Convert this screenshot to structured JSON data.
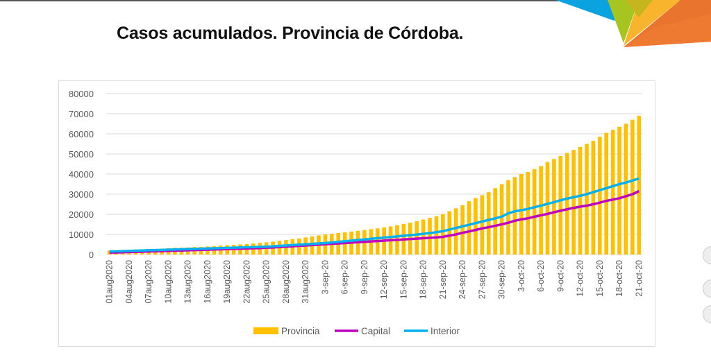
{
  "title": "Casos acumulados. Provincia de Córdoba.",
  "chart_data": {
    "type": "bar+line",
    "title": "Casos acumulados. Provincia de Córdoba.",
    "ylim": [
      0,
      80000
    ],
    "yticks": [
      0,
      10000,
      20000,
      30000,
      40000,
      50000,
      60000,
      70000,
      80000
    ],
    "grid": true,
    "legend_position": "bottom",
    "xtick_every": 3,
    "xtick_labels": [
      "01aug2020",
      "04aug2020",
      "07aug2020",
      "10aug2020",
      "13aug2020",
      "16aug2020",
      "19aug2020",
      "22aug2020",
      "25aug2020",
      "28aug2020",
      "31aug2020",
      "3-sep-20",
      "6-sep-20",
      "9-sep-20",
      "12-sep-20",
      "15-sep-20",
      "18-sep-20",
      "21-sep-20",
      "24-sep-20",
      "27-sep-20",
      "30-sep-20",
      "3-oct-20",
      "6-oct-20",
      "9-oct-20",
      "12-oct-20",
      "15-oct-20",
      "18-oct-20",
      "21-oct-20"
    ],
    "series": [
      {
        "name": "Provincia",
        "kind": "bar",
        "color": "#FFC000",
        "values": [
          2000,
          2100,
          2300,
          2400,
          2500,
          2600,
          2700,
          2800,
          2900,
          3100,
          3300,
          3400,
          3500,
          3700,
          3800,
          4000,
          4200,
          4400,
          4600,
          4800,
          5000,
          5200,
          5500,
          5800,
          6100,
          6400,
          6800,
          7200,
          7600,
          8000,
          8500,
          9000,
          9500,
          10000,
          10300,
          10700,
          11000,
          11400,
          11800,
          12200,
          12600,
          13000,
          13500,
          14000,
          14600,
          15200,
          15800,
          16600,
          17400,
          18200,
          19000,
          20000,
          21500,
          23000,
          24500,
          26500,
          28000,
          29500,
          31000,
          33000,
          35000,
          37000,
          38500,
          40000,
          41000,
          42500,
          44000,
          46000,
          47500,
          49000,
          50500,
          52000,
          53500,
          55000,
          56500,
          58500,
          60500,
          62000,
          63500,
          65000,
          67000,
          69000
        ]
      },
      {
        "name": "Capital",
        "kind": "line",
        "color": "#C000C0",
        "values": [
          1000,
          1000,
          1100,
          1200,
          1300,
          1400,
          1500,
          1600,
          1700,
          1800,
          1900,
          2000,
          2100,
          2200,
          2300,
          2400,
          2500,
          2600,
          2700,
          2800,
          2900,
          3000,
          3100,
          3200,
          3400,
          3500,
          3700,
          3900,
          4100,
          4300,
          4500,
          4700,
          4900,
          5100,
          5300,
          5500,
          5700,
          5900,
          6100,
          6300,
          6500,
          6700,
          6900,
          7100,
          7300,
          7500,
          7700,
          7900,
          8100,
          8300,
          8500,
          8800,
          9400,
          10000,
          10800,
          11500,
          12200,
          13000,
          13600,
          14300,
          15000,
          15800,
          16800,
          17500,
          18000,
          18800,
          19500,
          20200,
          21000,
          21800,
          22500,
          23200,
          23800,
          24300,
          25000,
          25800,
          26700,
          27300,
          28000,
          29000,
          30000,
          31500
        ]
      },
      {
        "name": "Interior",
        "kind": "line",
        "color": "#00B0F0",
        "values": [
          1500,
          1600,
          1700,
          1800,
          1900,
          2000,
          2100,
          2200,
          2300,
          2400,
          2500,
          2600,
          2700,
          2800,
          2900,
          3000,
          3100,
          3200,
          3300,
          3400,
          3500,
          3600,
          3700,
          3800,
          3900,
          4100,
          4300,
          4500,
          4700,
          4900,
          5100,
          5300,
          5500,
          5700,
          6000,
          6300,
          6600,
          6900,
          7200,
          7500,
          7800,
          8100,
          8400,
          8700,
          9000,
          9300,
          9600,
          9900,
          10300,
          10700,
          11100,
          11600,
          12400,
          13200,
          14000,
          14800,
          15600,
          16400,
          17200,
          18000,
          18800,
          20500,
          21500,
          22000,
          22700,
          23500,
          24300,
          25200,
          26000,
          27000,
          27800,
          28500,
          29200,
          30000,
          31000,
          32000,
          33000,
          34000,
          35000,
          35800,
          36800,
          37800
        ]
      }
    ]
  }
}
